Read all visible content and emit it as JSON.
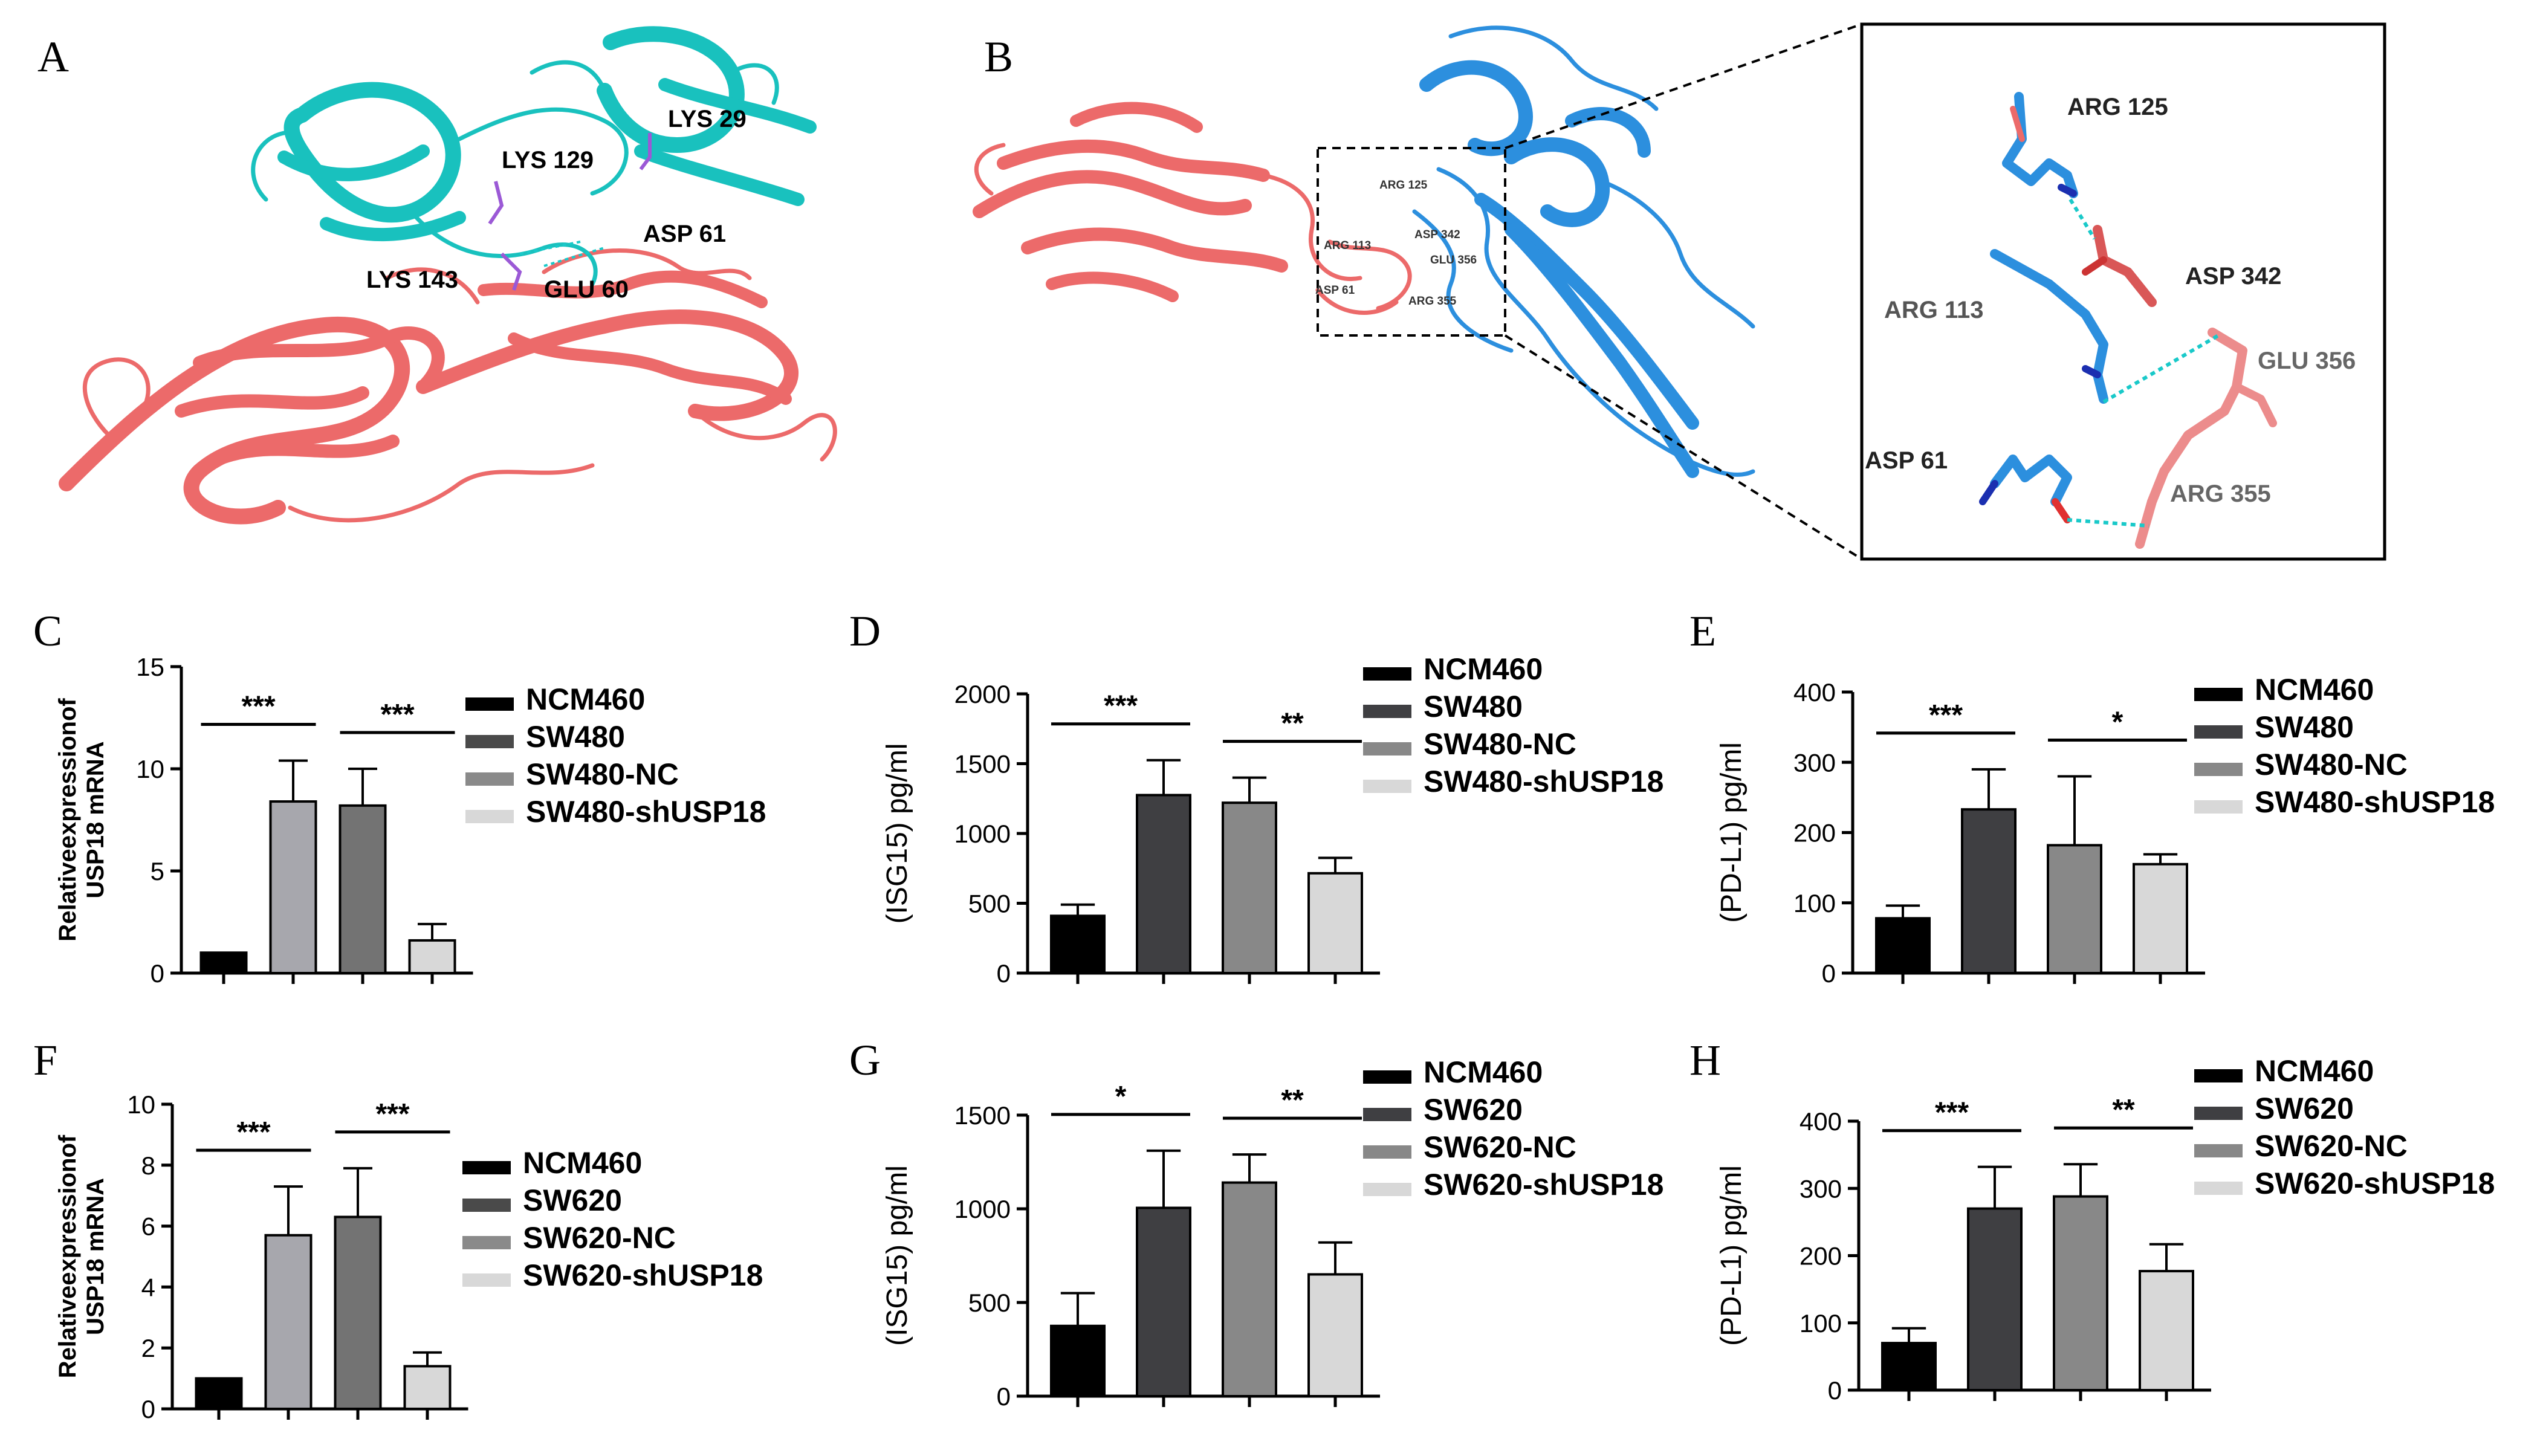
{
  "structure_panels": {
    "A": {
      "letter": "A",
      "residues": [
        "LYS  29",
        "LYS  129",
        "ASP  61",
        "LYS  143",
        "GLU  60"
      ]
    },
    "B": {
      "letter": "B",
      "small_residues": [
        "ARG  125",
        "ARG  113",
        "ASP  342",
        "GLU  356",
        "ASP  61",
        "ARG  355"
      ],
      "inset_residues": [
        "ARG  125",
        "ASP  342",
        "ARG  113",
        "GLU  356",
        "ASP  61",
        "ARG  355"
      ]
    },
    "colors": {
      "teal": "#19c1be",
      "salmon": "#ec6a6a",
      "blue": "#2c8fde",
      "purple": "#9b59d6",
      "bond": "#19c9c9"
    }
  },
  "chart_data": [
    {
      "panel": "C",
      "type": "bar",
      "categories": [
        "NCM460",
        "SW480",
        "SW480-NC",
        "SW480-shUSP18"
      ],
      "values": [
        1.0,
        8.4,
        8.2,
        1.6
      ],
      "errors": [
        0,
        2.0,
        1.8,
        0.8
      ],
      "ylim": [
        0,
        15
      ],
      "yticks": [
        0,
        5,
        10,
        15
      ],
      "ylabel": [
        "Relativeexpressionof",
        "USP18 mRNA"
      ],
      "colors": [
        "#000000",
        "#a7a7ad",
        "#737373",
        "#d8d8d8"
      ],
      "legend": [
        "NCM460",
        "SW480",
        "SW480-NC",
        "SW480-shUSP18"
      ],
      "legend_colors": [
        "#000000",
        "#4a4a4a",
        "#8a8a8a",
        "#d8d8d8"
      ],
      "significance": [
        {
          "from": 0,
          "to": 1,
          "label": "***"
        },
        {
          "from": 2,
          "to": 3,
          "label": "***"
        }
      ]
    },
    {
      "panel": "D",
      "type": "bar",
      "categories": [
        "NCM460",
        "SW480",
        "SW480-NC",
        "SW480-shUSP18"
      ],
      "values": [
        410,
        1275,
        1220,
        715
      ],
      "errors": [
        80,
        250,
        180,
        110
      ],
      "ylim": [
        0,
        2000
      ],
      "yticks": [
        0,
        500,
        1000,
        1500,
        2000
      ],
      "ylabel": [
        "(ISG15) pg/ml"
      ],
      "colors": [
        "#000000",
        "#3f3f42",
        "#888888",
        "#d8d8d8"
      ],
      "legend": [
        "NCM460",
        "SW480",
        "SW480-NC",
        "SW480-shUSP18"
      ],
      "legend_colors": [
        "#000000",
        "#3f3f42",
        "#888888",
        "#d8d8d8"
      ],
      "significance": [
        {
          "from": 0,
          "to": 1,
          "label": "***"
        },
        {
          "from": 2,
          "to": 3,
          "label": "**"
        }
      ]
    },
    {
      "panel": "E",
      "type": "bar",
      "categories": [
        "NCM460",
        "SW480",
        "SW480-NC",
        "SW480-shUSP18"
      ],
      "values": [
        78,
        233,
        182,
        155
      ],
      "errors": [
        18,
        57,
        98,
        14
      ],
      "ylim": [
        0,
        400
      ],
      "yticks": [
        0,
        100,
        200,
        300,
        400
      ],
      "ylabel": [
        "(PD-L1) pg/ml"
      ],
      "colors": [
        "#000000",
        "#3f3f42",
        "#888888",
        "#d8d8d8"
      ],
      "legend": [
        "NCM460",
        "SW480",
        "SW480-NC",
        "SW480-shUSP18"
      ],
      "legend_colors": [
        "#000000",
        "#3f3f42",
        "#888888",
        "#d8d8d8"
      ],
      "significance": [
        {
          "from": 0,
          "to": 1,
          "label": "***"
        },
        {
          "from": 2,
          "to": 3,
          "label": "*"
        }
      ]
    },
    {
      "panel": "F",
      "type": "bar",
      "categories": [
        "NCM460",
        "SW620",
        "SW620-NC",
        "SW620-shUSP18"
      ],
      "values": [
        1.0,
        5.7,
        6.3,
        1.4
      ],
      "errors": [
        0,
        1.6,
        1.6,
        0.45
      ],
      "ylim": [
        0,
        10
      ],
      "yticks": [
        0,
        2,
        4,
        6,
        8,
        10
      ],
      "ylabel": [
        "Relativeexpressionof",
        "USP18 mRNA"
      ],
      "colors": [
        "#000000",
        "#a7a7ad",
        "#737373",
        "#d8d8d8"
      ],
      "legend": [
        "NCM460",
        "SW620",
        "SW620-NC",
        "SW620-shUSP18"
      ],
      "legend_colors": [
        "#000000",
        "#4a4a4a",
        "#8a8a8a",
        "#d8d8d8"
      ],
      "significance": [
        {
          "from": 0,
          "to": 1,
          "label": "***"
        },
        {
          "from": 2,
          "to": 3,
          "label": "***"
        }
      ]
    },
    {
      "panel": "G",
      "type": "bar",
      "categories": [
        "NCM460",
        "SW620",
        "SW620-NC",
        "SW620-shUSP18"
      ],
      "values": [
        375,
        1005,
        1140,
        650
      ],
      "errors": [
        175,
        305,
        150,
        170
      ],
      "ylim": [
        0,
        1500
      ],
      "yticks": [
        0,
        500,
        1000,
        1500
      ],
      "ylabel": [
        "(ISG15) pg/ml"
      ],
      "colors": [
        "#000000",
        "#3f3f42",
        "#888888",
        "#d8d8d8"
      ],
      "legend": [
        "NCM460",
        "SW620",
        "SW620-NC",
        "SW620-shUSP18"
      ],
      "legend_colors": [
        "#000000",
        "#3f3f42",
        "#888888",
        "#d8d8d8"
      ],
      "significance": [
        {
          "from": 0,
          "to": 1,
          "label": "*"
        },
        {
          "from": 2,
          "to": 3,
          "label": "**"
        }
      ]
    },
    {
      "panel": "H",
      "type": "bar",
      "categories": [
        "NCM460",
        "SW620",
        "SW620-NC",
        "SW620-shUSP18"
      ],
      "values": [
        70,
        270,
        288,
        177
      ],
      "errors": [
        22,
        62,
        48,
        40
      ],
      "ylim": [
        0,
        400
      ],
      "yticks": [
        0,
        100,
        200,
        300,
        400
      ],
      "ylabel": [
        "(PD-L1) pg/ml"
      ],
      "colors": [
        "#000000",
        "#3f3f42",
        "#888888",
        "#d8d8d8"
      ],
      "legend": [
        "NCM460",
        "SW620",
        "SW620-NC",
        "SW620-shUSP18"
      ],
      "legend_colors": [
        "#000000",
        "#3f3f42",
        "#888888",
        "#d8d8d8"
      ],
      "significance": [
        {
          "from": 0,
          "to": 1,
          "label": "***"
        },
        {
          "from": 2,
          "to": 3,
          "label": "**"
        }
      ]
    }
  ]
}
